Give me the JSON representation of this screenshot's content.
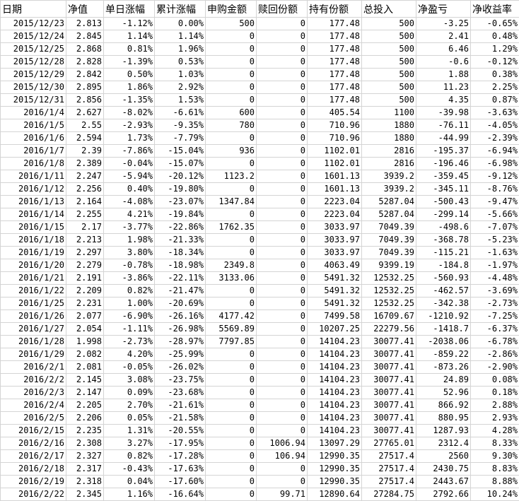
{
  "headers": [
    "日期",
    "净值",
    "单日涨幅",
    "累计涨幅",
    "申购金额",
    "赎回份额",
    "持有份额",
    "总投入",
    "净盈亏",
    "净收益率"
  ],
  "rows": [
    [
      "2015/12/23",
      "2.813",
      "-1.12%",
      "0.00%",
      "500",
      "0",
      "177.48",
      "500",
      "-3.25",
      "-0.65%"
    ],
    [
      "2015/12/24",
      "2.845",
      "1.14%",
      "1.14%",
      "0",
      "0",
      "177.48",
      "500",
      "2.41",
      "0.48%"
    ],
    [
      "2015/12/25",
      "2.868",
      "0.81%",
      "1.96%",
      "0",
      "0",
      "177.48",
      "500",
      "6.46",
      "1.29%"
    ],
    [
      "2015/12/28",
      "2.828",
      "-1.39%",
      "0.53%",
      "0",
      "0",
      "177.48",
      "500",
      "-0.6",
      "-0.12%"
    ],
    [
      "2015/12/29",
      "2.842",
      "0.50%",
      "1.03%",
      "0",
      "0",
      "177.48",
      "500",
      "1.88",
      "0.38%"
    ],
    [
      "2015/12/30",
      "2.895",
      "1.86%",
      "2.92%",
      "0",
      "0",
      "177.48",
      "500",
      "11.23",
      "2.25%"
    ],
    [
      "2015/12/31",
      "2.856",
      "-1.35%",
      "1.53%",
      "0",
      "0",
      "177.48",
      "500",
      "4.35",
      "0.87%"
    ],
    [
      "2016/1/4",
      "2.627",
      "-8.02%",
      "-6.61%",
      "600",
      "0",
      "405.54",
      "1100",
      "-39.98",
      "-3.63%"
    ],
    [
      "2016/1/5",
      "2.55",
      "-2.93%",
      "-9.35%",
      "780",
      "0",
      "710.96",
      "1880",
      "-76.11",
      "-4.05%"
    ],
    [
      "2016/1/6",
      "2.594",
      "1.73%",
      "-7.79%",
      "0",
      "0",
      "710.96",
      "1880",
      "-44.99",
      "-2.39%"
    ],
    [
      "2016/1/7",
      "2.39",
      "-7.86%",
      "-15.04%",
      "936",
      "0",
      "1102.01",
      "2816",
      "-195.37",
      "-6.94%"
    ],
    [
      "2016/1/8",
      "2.389",
      "-0.04%",
      "-15.07%",
      "0",
      "0",
      "1102.01",
      "2816",
      "-196.46",
      "-6.98%"
    ],
    [
      "2016/1/11",
      "2.247",
      "-5.94%",
      "-20.12%",
      "1123.2",
      "0",
      "1601.13",
      "3939.2",
      "-359.45",
      "-9.12%"
    ],
    [
      "2016/1/12",
      "2.256",
      "0.40%",
      "-19.80%",
      "0",
      "0",
      "1601.13",
      "3939.2",
      "-345.11",
      "-8.76%"
    ],
    [
      "2016/1/13",
      "2.164",
      "-4.08%",
      "-23.07%",
      "1347.84",
      "0",
      "2223.04",
      "5287.04",
      "-500.43",
      "-9.47%"
    ],
    [
      "2016/1/14",
      "2.255",
      "4.21%",
      "-19.84%",
      "0",
      "0",
      "2223.04",
      "5287.04",
      "-299.14",
      "-5.66%"
    ],
    [
      "2016/1/15",
      "2.17",
      "-3.77%",
      "-22.86%",
      "1762.35",
      "0",
      "3033.97",
      "7049.39",
      "-498.6",
      "-7.07%"
    ],
    [
      "2016/1/18",
      "2.213",
      "1.98%",
      "-21.33%",
      "0",
      "0",
      "3033.97",
      "7049.39",
      "-368.78",
      "-5.23%"
    ],
    [
      "2016/1/19",
      "2.297",
      "3.80%",
      "-18.34%",
      "0",
      "0",
      "3033.97",
      "7049.39",
      "-115.21",
      "-1.63%"
    ],
    [
      "2016/1/20",
      "2.279",
      "-0.78%",
      "-18.98%",
      "2349.8",
      "0",
      "4063.49",
      "9399.19",
      "-184.8",
      "-1.97%"
    ],
    [
      "2016/1/21",
      "2.191",
      "-3.86%",
      "-22.11%",
      "3133.06",
      "0",
      "5491.32",
      "12532.25",
      "-560.93",
      "-4.48%"
    ],
    [
      "2016/1/22",
      "2.209",
      "0.82%",
      "-21.47%",
      "0",
      "0",
      "5491.32",
      "12532.25",
      "-462.57",
      "-3.69%"
    ],
    [
      "2016/1/25",
      "2.231",
      "1.00%",
      "-20.69%",
      "0",
      "0",
      "5491.32",
      "12532.25",
      "-342.38",
      "-2.73%"
    ],
    [
      "2016/1/26",
      "2.077",
      "-6.90%",
      "-26.16%",
      "4177.42",
      "0",
      "7499.58",
      "16709.67",
      "-1210.92",
      "-7.25%"
    ],
    [
      "2016/1/27",
      "2.054",
      "-1.11%",
      "-26.98%",
      "5569.89",
      "0",
      "10207.25",
      "22279.56",
      "-1418.7",
      "-6.37%"
    ],
    [
      "2016/1/28",
      "1.998",
      "-2.73%",
      "-28.97%",
      "7797.85",
      "0",
      "14104.23",
      "30077.41",
      "-2038.06",
      "-6.78%"
    ],
    [
      "2016/1/29",
      "2.082",
      "4.20%",
      "-25.99%",
      "0",
      "0",
      "14104.23",
      "30077.41",
      "-859.22",
      "-2.86%"
    ],
    [
      "2016/2/1",
      "2.081",
      "-0.05%",
      "-26.02%",
      "0",
      "0",
      "14104.23",
      "30077.41",
      "-873.26",
      "-2.90%"
    ],
    [
      "2016/2/2",
      "2.145",
      "3.08%",
      "-23.75%",
      "0",
      "0",
      "14104.23",
      "30077.41",
      "24.89",
      "0.08%"
    ],
    [
      "2016/2/3",
      "2.147",
      "0.09%",
      "-23.68%",
      "0",
      "0",
      "14104.23",
      "30077.41",
      "52.96",
      "0.18%"
    ],
    [
      "2016/2/4",
      "2.205",
      "2.70%",
      "-21.61%",
      "0",
      "0",
      "14104.23",
      "30077.41",
      "866.92",
      "2.88%"
    ],
    [
      "2016/2/5",
      "2.206",
      "0.05%",
      "-21.58%",
      "0",
      "0",
      "14104.23",
      "30077.41",
      "880.95",
      "2.93%"
    ],
    [
      "2016/2/15",
      "2.235",
      "1.31%",
      "-20.55%",
      "0",
      "0",
      "14104.23",
      "30077.41",
      "1287.93",
      "4.28%"
    ],
    [
      "2016/2/16",
      "2.308",
      "3.27%",
      "-17.95%",
      "0",
      "1006.94",
      "13097.29",
      "27765.01",
      "2312.4",
      "8.33%"
    ],
    [
      "2016/2/17",
      "2.327",
      "0.82%",
      "-17.28%",
      "0",
      "106.94",
      "12990.35",
      "27517.4",
      "2560",
      "9.30%"
    ],
    [
      "2016/2/18",
      "2.317",
      "-0.43%",
      "-17.63%",
      "0",
      "0",
      "12990.35",
      "27517.4",
      "2430.75",
      "8.83%"
    ],
    [
      "2016/2/19",
      "2.318",
      "0.04%",
      "-17.60%",
      "0",
      "0",
      "12990.35",
      "27517.4",
      "2443.67",
      "8.88%"
    ],
    [
      "2016/2/22",
      "2.345",
      "1.16%",
      "-16.64%",
      "0",
      "99.71",
      "12890.64",
      "27284.75",
      "2792.66",
      "10.24%"
    ]
  ]
}
